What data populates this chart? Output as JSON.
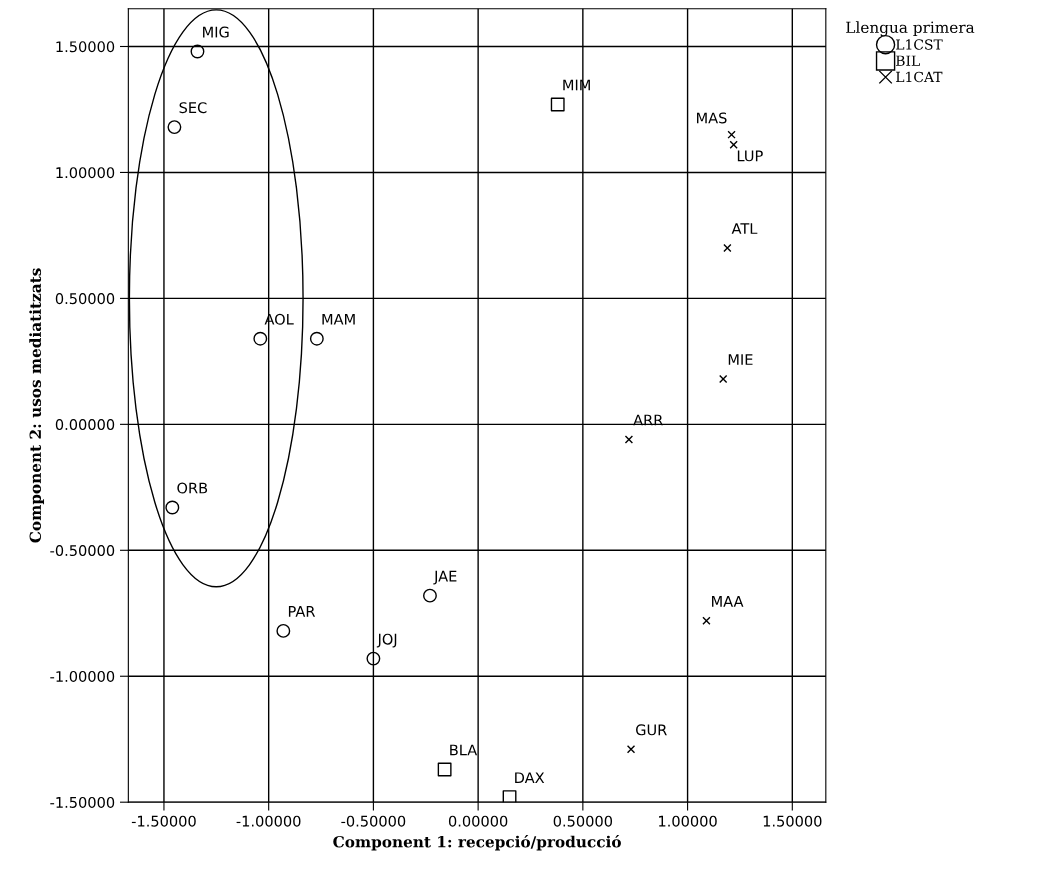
{
  "chart_data": {
    "type": "scatter",
    "xlabel": "Component 1: recepció/producció",
    "ylabel": "Component 2: usos mediatitzats",
    "legend_title": "Llengua primera",
    "xlim": [
      -1.67,
      1.66
    ],
    "ylim": [
      -1.5,
      1.65
    ],
    "xticks": [
      {
        "value": -1.5,
        "label": "-1.50000"
      },
      {
        "value": -1.0,
        "label": "-1.00000"
      },
      {
        "value": -0.5,
        "label": "-0.50000"
      },
      {
        "value": 0,
        "label": "0.00000"
      },
      {
        "value": 0.5,
        "label": "0.50000"
      },
      {
        "value": 1.0,
        "label": "1.00000"
      },
      {
        "value": 1.5,
        "label": "1.50000"
      }
    ],
    "yticks": [
      {
        "value": -1.5,
        "label": "-1.50000"
      },
      {
        "value": -1.0,
        "label": "-1.00000"
      },
      {
        "value": -0.5,
        "label": "-0.50000"
      },
      {
        "value": 0,
        "label": "0.00000"
      },
      {
        "value": 0.5,
        "label": "0.50000"
      },
      {
        "value": 1.0,
        "label": "1.00000"
      },
      {
        "value": 1.5,
        "label": "1.50000"
      }
    ],
    "grid": true,
    "legend": "top right",
    "series": [
      {
        "name": "L1CST",
        "color": "#000000",
        "marker": "circle",
        "x": [
          -1.34,
          -1.45,
          -1.04,
          -0.77,
          -1.46,
          -0.23,
          -0.93,
          -0.5
        ],
        "values": [
          1.48,
          1.18,
          0.34,
          0.34,
          -0.33,
          -0.68,
          -0.82,
          -0.93
        ],
        "value_labels": [
          "MIG",
          "SEC",
          "AOL",
          "MAM",
          "ORB",
          "JAE",
          "PAR",
          "JOJ"
        ]
      },
      {
        "name": "BIL",
        "color": "#000000",
        "marker": "square",
        "x": [
          0.38,
          -0.16,
          0.15
        ],
        "values": [
          1.27,
          -1.37,
          -1.48
        ],
        "value_labels": [
          "MIM",
          "BLA",
          "DAX"
        ]
      },
      {
        "name": "L1CAT",
        "color": "#000000",
        "marker": "cross",
        "x": [
          1.21,
          1.22,
          1.19,
          1.17,
          0.72,
          1.09,
          0.73
        ],
        "values": [
          1.15,
          1.11,
          0.7,
          0.18,
          -0.06,
          -0.78,
          -1.29
        ],
        "value_labels": [
          "MAS",
          "LUP",
          "ATL",
          "MIE",
          "ARR",
          "MAA",
          "GUR"
        ]
      }
    ]
  }
}
